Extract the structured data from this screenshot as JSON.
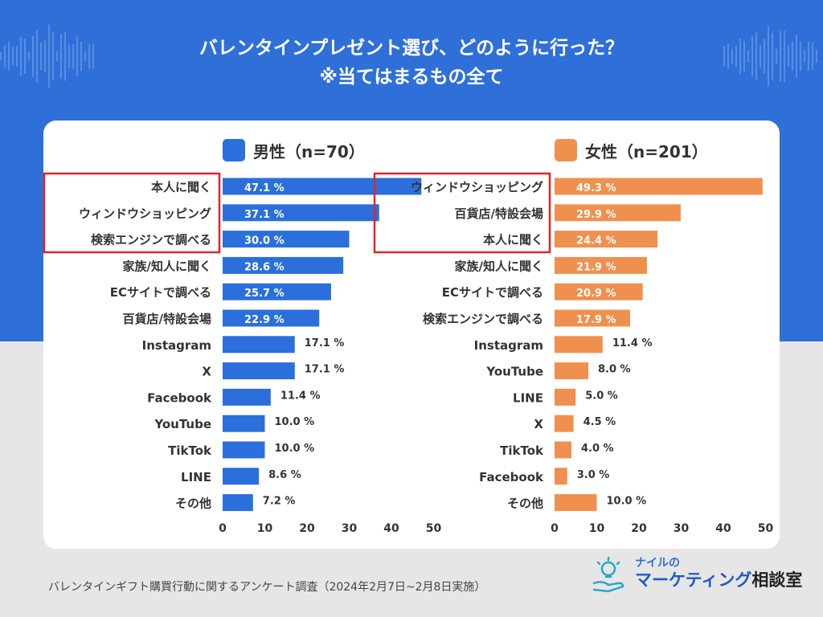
{
  "title_line1": "バレンタインプレゼント選び、どのように行った？",
  "title_line2": "※当てはまるもの全て",
  "footer_note": "バレンタインギフト購買行動に関するアンケート調査（2024年2月7日~2月8日実施）",
  "logo": {
    "small": "ナイルの",
    "main": "マーケティング",
    "main_suffix": "相談室"
  },
  "colors": {
    "male": "#2a6fdb",
    "female": "#f0904f",
    "highlight": "#e0242b",
    "band": "#2f6fd8"
  },
  "chart_data": [
    {
      "type": "bar",
      "orientation": "horizontal",
      "legend": "男性（n=70）",
      "categories": [
        "本人に聞く",
        "ウィンドウショッピング",
        "検索エンジンで調べる",
        "家族/知人に聞く",
        "ECサイトで調べる",
        "百貨店/特設会場",
        "Instagram",
        "X",
        "Facebook",
        "YouTube",
        "TikTok",
        "LINE",
        "その他"
      ],
      "values": [
        47.1,
        37.1,
        30.0,
        28.6,
        25.7,
        22.9,
        17.1,
        17.1,
        11.4,
        10.0,
        10.0,
        8.6,
        7.2
      ],
      "value_labels": [
        "47.1 %",
        "37.1 %",
        "30.0 %",
        "28.6 %",
        "25.7 %",
        "22.9 %",
        "17.1 %",
        "17.1 %",
        "11.4 %",
        "10.0 %",
        "10.0 %",
        "8.6 %",
        "7.2 %"
      ],
      "highlighted_count": 3,
      "xlim": [
        0,
        50
      ],
      "xticks": [
        "0",
        "10",
        "20",
        "30",
        "40",
        "50"
      ]
    },
    {
      "type": "bar",
      "orientation": "horizontal",
      "legend": "女性（n=201）",
      "categories": [
        "ウィンドウショッピング",
        "百貨店/特設会場",
        "本人に聞く",
        "家族/知人に聞く",
        "ECサイトで調べる",
        "検索エンジンで調べる",
        "Instagram",
        "YouTube",
        "LINE",
        "X",
        "TikTok",
        "Facebook",
        "その他"
      ],
      "values": [
        49.3,
        29.9,
        24.4,
        21.9,
        20.9,
        17.9,
        11.4,
        8.0,
        5.0,
        4.5,
        4.0,
        3.0,
        10.0
      ],
      "value_labels": [
        "49.3 %",
        "29.9 %",
        "24.4 %",
        "21.9 %",
        "20.9 %",
        "17.9 %",
        "11.4 %",
        "8.0 %",
        "5.0 %",
        "4.5 %",
        "4.0 %",
        "3.0 %",
        "10.0 %"
      ],
      "highlighted_count": 3,
      "xlim": [
        0,
        50
      ],
      "xticks": [
        "0",
        "10",
        "20",
        "30",
        "40",
        "50"
      ]
    }
  ]
}
